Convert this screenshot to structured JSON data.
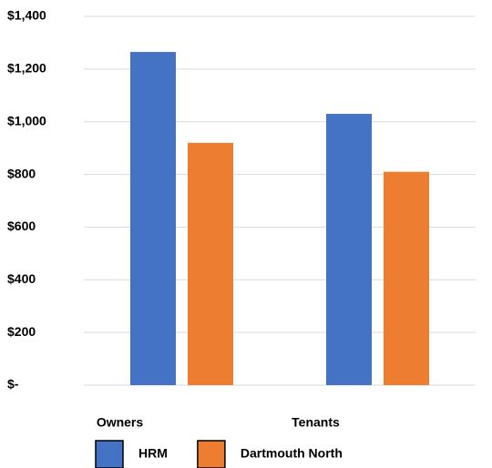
{
  "chart_data": {
    "type": "bar",
    "categories": [
      "Owners",
      "Tenants"
    ],
    "series": [
      {
        "name": "HRM",
        "color": "#4472c4",
        "values": [
          1265,
          1030
        ]
      },
      {
        "name": "Dartmouth North",
        "color": "#ed7d31",
        "values": [
          920,
          810
        ]
      }
    ],
    "ylim": [
      0,
      1400
    ],
    "yticks": [
      {
        "value": 0,
        "label": "$-"
      },
      {
        "value": 200,
        "label": "$200"
      },
      {
        "value": 400,
        "label": "$400"
      },
      {
        "value": 600,
        "label": "$600"
      },
      {
        "value": 800,
        "label": "$800"
      },
      {
        "value": 1000,
        "label": "$1,000"
      },
      {
        "value": 1200,
        "label": "$1,200"
      },
      {
        "value": 1400,
        "label": "$1,400"
      }
    ],
    "grid": true
  }
}
